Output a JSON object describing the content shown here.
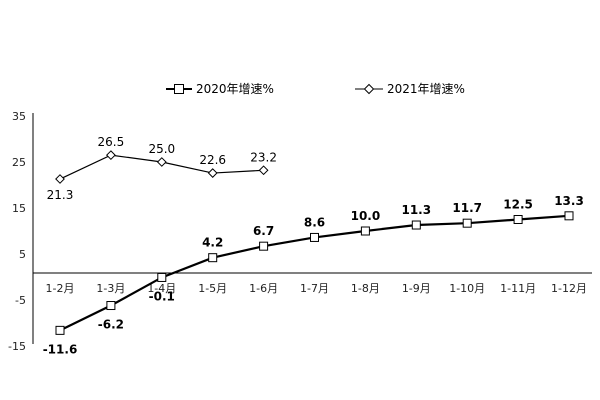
{
  "chart_data": {
    "type": "line",
    "categories": [
      "1-2月",
      "1-3月",
      "1-4月",
      "1-5月",
      "1-6月",
      "1-7月",
      "1-8月",
      "1-9月",
      "1-10月",
      "1-11月",
      "1-12月"
    ],
    "ylim": [
      -15,
      35
    ],
    "yticks": [
      35,
      25,
      15,
      5,
      -5,
      -15
    ],
    "grid": false,
    "legend_position": "top",
    "series": [
      {
        "name": "2020年增速%",
        "marker": "square",
        "line_width": "thick",
        "color": "#000000",
        "values": [
          -11.6,
          -6.2,
          -0.1,
          4.2,
          6.7,
          8.6,
          10.0,
          11.3,
          11.7,
          12.5,
          13.3
        ],
        "labels": [
          "-11.6",
          "-6.2",
          "-0.1",
          "4.2",
          "6.7",
          "8.6",
          "10.0",
          "11.3",
          "11.7",
          "12.5",
          "13.3"
        ]
      },
      {
        "name": "2021年增速%",
        "marker": "diamond",
        "line_width": "thin",
        "color": "#000000",
        "values": [
          21.3,
          26.5,
          25.0,
          22.6,
          23.2,
          null,
          null,
          null,
          null,
          null,
          null
        ],
        "labels": [
          "21.3",
          "26.5",
          "25.0",
          "22.6",
          "23.2"
        ]
      }
    ]
  }
}
